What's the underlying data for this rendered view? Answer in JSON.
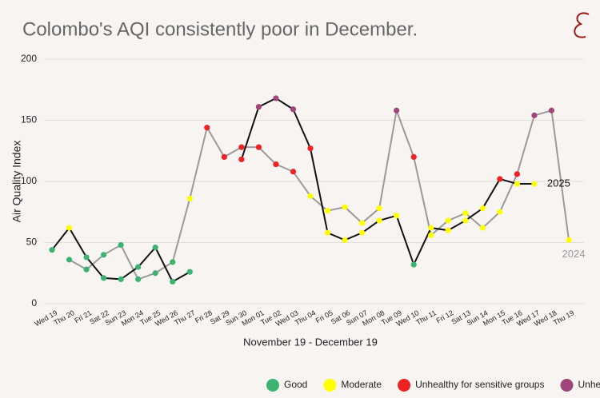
{
  "chart_data": {
    "type": "line",
    "title": "Colombo's AQI consistently poor in December.",
    "y_label": "Air Quality Index",
    "x_label": "November 19 - December 19",
    "categories": [
      "Wed 19",
      "Thu 20",
      "Fri 21",
      "Sat 22",
      "Sun 23",
      "Mon 24",
      "Tue 25",
      "Wed 26",
      "Thu 27",
      "Fri 28",
      "Sat 29",
      "Sun 30",
      "Mon 01",
      "Tue 02",
      "Wed 03",
      "Thu 04",
      "Fri 05",
      "Sat 06",
      "Sun 07",
      "Mon 08",
      "Tue 09",
      "Wed 10",
      "Thu 11",
      "Fri 12",
      "Sat 13",
      "Sun 14",
      "Mon 15",
      "Tue 16",
      "Wed 17",
      "Wed 18",
      "Thu 19"
    ],
    "series": [
      {
        "name": "2025",
        "color": "#111111",
        "values": [
          44,
          62,
          38,
          21,
          20,
          30,
          46,
          18,
          26,
          null,
          null,
          118,
          161,
          168,
          159,
          127,
          58,
          52,
          58,
          68,
          72,
          32,
          62,
          60,
          68,
          78,
          102,
          98,
          98,
          null,
          null
        ]
      },
      {
        "name": "2024",
        "color": "#9a9a9a",
        "values": [
          null,
          36,
          28,
          40,
          48,
          20,
          25,
          34,
          86,
          144,
          120,
          128,
          128,
          114,
          108,
          88,
          76,
          79,
          66,
          78,
          158,
          120,
          56,
          68,
          74,
          62,
          75,
          106,
          154,
          158,
          52
        ]
      }
    ],
    "levels": [
      {
        "name": "Good",
        "color": "#3cb371",
        "max": 50
      },
      {
        "name": "Moderate",
        "color": "#ffff00",
        "max": 100
      },
      {
        "name": "Unhealthy for sensitive groups",
        "color": "#ee2222",
        "max": 150
      },
      {
        "name": "Unhealthy",
        "color": "#a0457a",
        "max": 200
      }
    ],
    "ylim": [
      0,
      200
    ],
    "yticks": [
      0,
      50,
      100,
      150,
      200
    ],
    "grid": true
  }
}
